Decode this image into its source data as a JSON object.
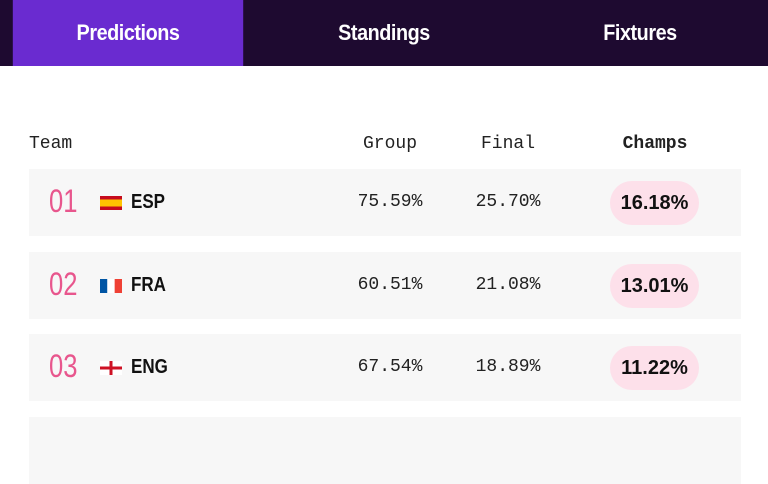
{
  "tabs": [
    "Predictions",
    "Standings",
    "Fixtures"
  ],
  "table": {
    "columns": [
      "Team",
      "Group",
      "Final",
      "Champs"
    ],
    "rows": [
      {
        "rank": "01",
        "team": "ESP",
        "group": "75.59%",
        "final": "25.70%",
        "champs": "16.18%"
      },
      {
        "rank": "02",
        "team": "FRA",
        "group": "60.51%",
        "final": "21.08%",
        "champs": "13.01%"
      },
      {
        "rank": "03",
        "team": "ENG",
        "group": "67.54%",
        "final": "18.89%",
        "champs": "11.22%"
      }
    ]
  }
}
